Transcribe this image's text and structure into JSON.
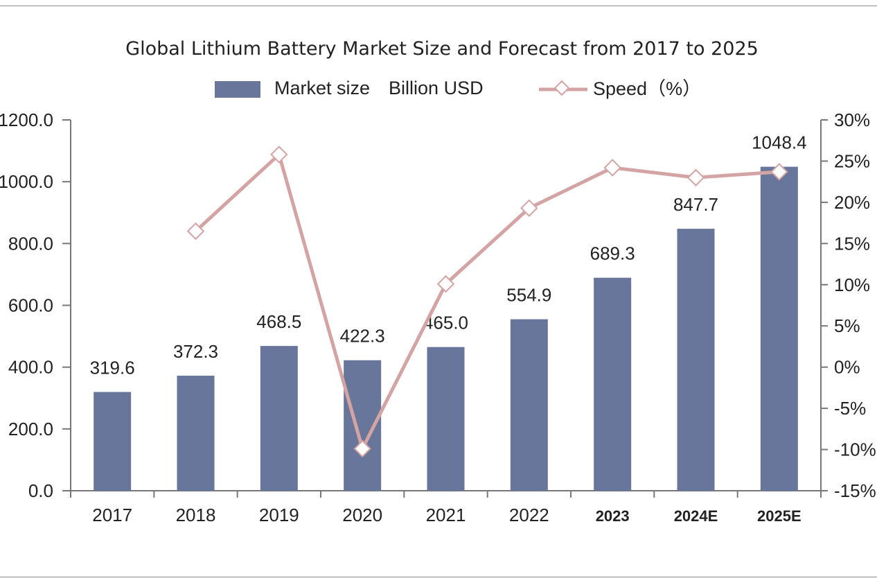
{
  "chart_data": {
    "type": "bar+line",
    "title": "Global Lithium Battery Market Size and Forecast from 2017 to 2025",
    "categories": [
      "2017",
      "2018",
      "2019",
      "2020",
      "2021",
      "2022",
      "2023",
      "2024E",
      "2025E"
    ],
    "series": [
      {
        "name": "Market size　Billion USD",
        "type": "bar",
        "axis": "left",
        "color": "#67769a",
        "values": [
          319.6,
          372.3,
          468.5,
          422.3,
          465.0,
          554.9,
          689.3,
          847.7,
          1048.4
        ],
        "labels": [
          "319.6",
          "372.3",
          "468.5",
          "422.3",
          "465.0",
          "554.9",
          "689.3",
          "847.7",
          "1048.4"
        ]
      },
      {
        "name": "Speed（%）",
        "type": "line",
        "axis": "right",
        "color": "#d4a3a3",
        "values": [
          null,
          16.5,
          25.8,
          -9.9,
          10.1,
          19.3,
          24.2,
          23.0,
          23.7
        ]
      }
    ],
    "left_axis": {
      "ylim": [
        0,
        1200
      ],
      "ticks": [
        "0.0",
        "200.0",
        "400.0",
        "600.0",
        "800.0",
        "1000.0",
        "1200.0"
      ]
    },
    "right_axis": {
      "ylim": [
        -15,
        30
      ],
      "ticks": [
        "-15%",
        "-10%",
        "-5%",
        "0%",
        "5%",
        "10%",
        "15%",
        "20%",
        "25%",
        "30%"
      ]
    },
    "legend": "top",
    "grid": false
  }
}
